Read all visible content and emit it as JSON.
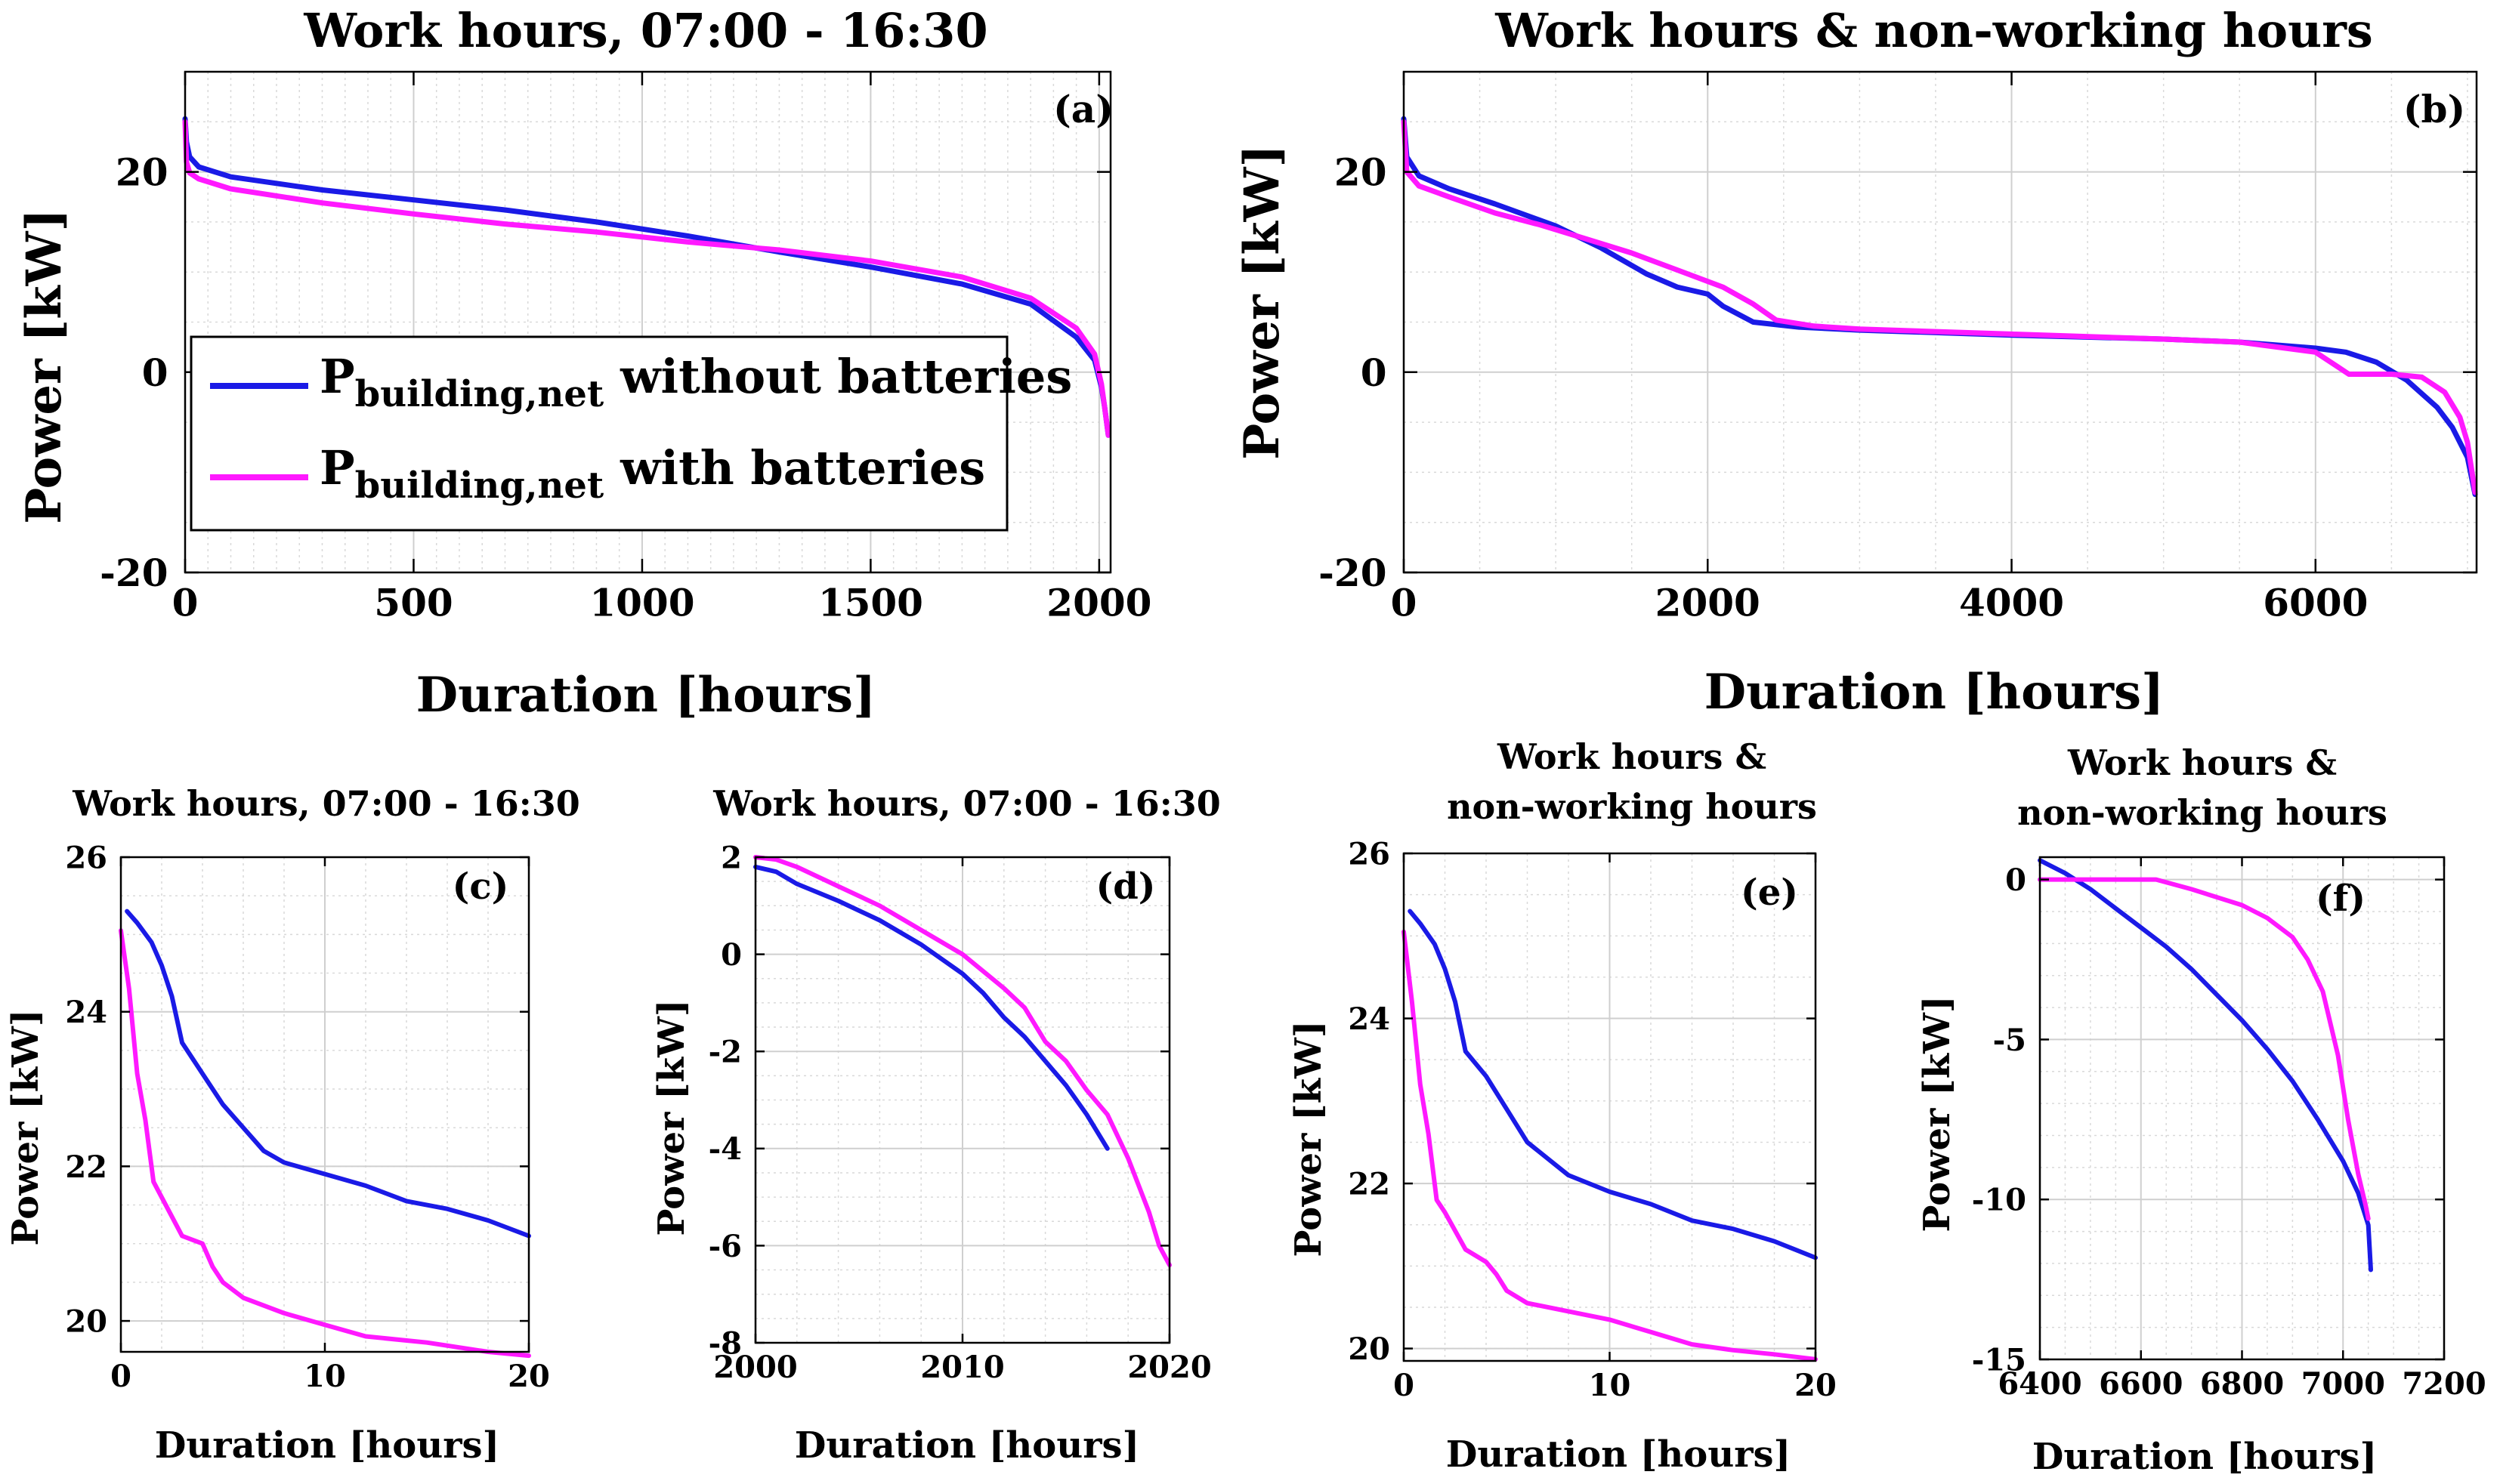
{
  "figure": {
    "background": "#ffffff"
  },
  "colors": {
    "without_batteries": "#1a1ae6",
    "with_batteries": "#ff19ff",
    "grid": "#d9d9d9",
    "axis": "#000000"
  },
  "chart_data": [
    {
      "id": "a",
      "type": "line",
      "title": "Work hours, 07:00 - 16:30",
      "panel_label": "(a)",
      "xlabel": "Duration [hours]",
      "ylabel": "Power [kW]",
      "xlim": [
        0,
        2025
      ],
      "ylim": [
        -20,
        30
      ],
      "xticks": [
        0,
        500,
        1000,
        1500,
        2000
      ],
      "yticks": [
        -20,
        0,
        20
      ],
      "xtick_labels": [
        "0",
        "500",
        "1000",
        "1500",
        "2000"
      ],
      "ytick_labels": [
        "-20",
        "0",
        "20"
      ],
      "minor_x": 50,
      "minor_y": 5,
      "grid": true,
      "legend": {
        "position": "left",
        "entries": [
          {
            "symbol": "P",
            "subscript": "building,net",
            "text": "without batteries"
          },
          {
            "symbol": "P",
            "subscript": "building,net",
            "text": "with batteries"
          }
        ]
      },
      "series": [
        {
          "name": "without batteries",
          "color": "#1a1ae6",
          "x": [
            0,
            3,
            10,
            30,
            100,
            300,
            500,
            700,
            900,
            1100,
            1300,
            1500,
            1700,
            1850,
            1950,
            1990,
            2005,
            2012,
            2020
          ],
          "y": [
            25.3,
            23,
            21.5,
            20.5,
            19.5,
            18.2,
            17.2,
            16.2,
            15,
            13.6,
            12,
            10.5,
            8.8,
            6.8,
            3.5,
            1.2,
            -1.5,
            -3.5,
            -6.3
          ]
        },
        {
          "name": "with batteries",
          "color": "#ff19ff",
          "x": [
            0,
            3,
            10,
            30,
            100,
            300,
            500,
            700,
            900,
            1100,
            1300,
            1500,
            1700,
            1850,
            1950,
            1990,
            2005,
            2012,
            2020
          ],
          "y": [
            25,
            21,
            19.9,
            19.3,
            18.3,
            16.9,
            15.8,
            14.8,
            14,
            13,
            12.2,
            11.1,
            9.5,
            7.4,
            4.4,
            1.8,
            -1.2,
            -3.5,
            -6.3
          ]
        }
      ]
    },
    {
      "id": "b",
      "type": "line",
      "title": "Work hours & non-working hours",
      "panel_label": "(b)",
      "xlabel": "Duration [hours]",
      "ylabel": "Power [kW]",
      "xlim": [
        0,
        7060
      ],
      "ylim": [
        -20,
        30
      ],
      "xticks": [
        0,
        2000,
        4000,
        6000
      ],
      "yticks": [
        -20,
        0,
        20
      ],
      "xtick_labels": [
        "0",
        "2000",
        "4000",
        "6000"
      ],
      "ytick_labels": [
        "-20",
        "0",
        "20"
      ],
      "minor_x": 500,
      "minor_y": 5,
      "grid": true,
      "series": [
        {
          "name": "without batteries",
          "color": "#1a1ae6",
          "x": [
            0,
            20,
            100,
            300,
            600,
            1000,
            1300,
            1600,
            1800,
            2000,
            2100,
            2300,
            2600,
            3000,
            4000,
            5000,
            5500,
            6000,
            6200,
            6400,
            6600,
            6800,
            6900,
            7000,
            7050
          ],
          "y": [
            25.3,
            21.5,
            19.6,
            18.3,
            16.8,
            14.6,
            12.4,
            9.8,
            8.5,
            7.8,
            6.6,
            5,
            4.5,
            4.2,
            3.7,
            3.3,
            3,
            2.4,
            2,
            1,
            -0.8,
            -3.5,
            -5.5,
            -8.5,
            -12.2
          ]
        },
        {
          "name": "with batteries",
          "color": "#ff19ff",
          "x": [
            0,
            20,
            100,
            300,
            600,
            900,
            1200,
            1500,
            1800,
            2100,
            2300,
            2450,
            2700,
            3000,
            4000,
            5000,
            5500,
            6000,
            6150,
            6220,
            6300,
            6500,
            6700,
            6850,
            6950,
            7000,
            7050
          ],
          "y": [
            25,
            20,
            18.6,
            17.5,
            15.9,
            14.7,
            13.3,
            11.9,
            10.2,
            8.5,
            6.8,
            5.2,
            4.6,
            4.3,
            3.8,
            3.3,
            3,
            2,
            0.5,
            -0.2,
            -0.2,
            -0.2,
            -0.5,
            -2,
            -4.5,
            -7,
            -12
          ]
        }
      ]
    },
    {
      "id": "c",
      "type": "line",
      "title": "Work hours, 07:00 - 16:30",
      "panel_label": "(c)",
      "xlabel": "Duration [hours]",
      "ylabel": "Power [kW]",
      "xlim": [
        0,
        20
      ],
      "ylim": [
        19.6,
        26
      ],
      "xticks": [
        0,
        10,
        20
      ],
      "yticks": [
        20,
        22,
        24,
        26
      ],
      "xtick_labels": [
        "0",
        "10",
        "20"
      ],
      "ytick_labels": [
        "20",
        "22",
        "24",
        "26"
      ],
      "minor_x": 2,
      "minor_y": 0.5,
      "grid": true,
      "series": [
        {
          "name": "without batteries",
          "color": "#1a1ae6",
          "x": [
            0.3,
            0.8,
            1.5,
            2,
            2.5,
            3,
            4,
            5,
            6,
            7,
            8,
            10,
            12,
            14,
            16,
            18,
            20
          ],
          "y": [
            25.3,
            25.15,
            24.9,
            24.6,
            24.2,
            23.6,
            23.2,
            22.8,
            22.5,
            22.2,
            22.05,
            21.9,
            21.75,
            21.55,
            21.45,
            21.3,
            21.1
          ]
        },
        {
          "name": "with batteries",
          "color": "#ff19ff",
          "x": [
            0,
            0.4,
            0.8,
            1.2,
            1.6,
            2,
            3,
            4,
            4.5,
            5,
            6,
            8,
            10,
            12,
            15,
            18,
            20
          ],
          "y": [
            25.05,
            24.3,
            23.2,
            22.6,
            21.8,
            21.6,
            21.1,
            21,
            20.7,
            20.5,
            20.3,
            20.1,
            19.95,
            19.8,
            19.72,
            19.6,
            19.55
          ]
        }
      ]
    },
    {
      "id": "d",
      "type": "line",
      "title": "Work hours, 07:00 - 16:30",
      "panel_label": "(d)",
      "xlabel": "Duration [hours]",
      "ylabel": "Power [kW]",
      "xlim": [
        2000,
        2020
      ],
      "ylim": [
        -8,
        2
      ],
      "xticks": [
        2000,
        2010,
        2020
      ],
      "yticks": [
        -8,
        -6,
        -4,
        -2,
        0,
        2
      ],
      "xtick_labels": [
        "2000",
        "2010",
        "2020"
      ],
      "ytick_labels": [
        "-8",
        "-6",
        "-4",
        "-2",
        "0",
        "2"
      ],
      "minor_x": 2,
      "minor_y": 0.5,
      "grid": true,
      "series": [
        {
          "name": "without batteries",
          "color": "#1a1ae6",
          "x": [
            2000,
            2001,
            2002,
            2004,
            2006,
            2008,
            2010,
            2011,
            2012,
            2013,
            2014,
            2015,
            2016,
            2017
          ],
          "y": [
            1.8,
            1.7,
            1.45,
            1.1,
            0.7,
            0.2,
            -0.4,
            -0.8,
            -1.3,
            -1.7,
            -2.2,
            -2.7,
            -3.3,
            -4
          ]
        },
        {
          "name": "with batteries",
          "color": "#ff19ff",
          "x": [
            2000,
            2001,
            2002,
            2004,
            2006,
            2008,
            2010,
            2012,
            2013,
            2014,
            2015,
            2016,
            2017,
            2018,
            2019,
            2019.5,
            2020
          ],
          "y": [
            2,
            1.95,
            1.8,
            1.4,
            1,
            0.5,
            0,
            -0.7,
            -1.1,
            -1.8,
            -2.2,
            -2.8,
            -3.3,
            -4.2,
            -5.3,
            -6,
            -6.4
          ]
        }
      ]
    },
    {
      "id": "e",
      "type": "line",
      "title": "Work hours &",
      "title_line2": "non-working hours",
      "panel_label": "(e)",
      "xlabel": "Duration [hours]",
      "ylabel": "Power [kW]",
      "xlim": [
        0,
        20
      ],
      "ylim": [
        19.85,
        26
      ],
      "xticks": [
        0,
        10,
        20
      ],
      "yticks": [
        20,
        22,
        24,
        26
      ],
      "xtick_labels": [
        "0",
        "10",
        "20"
      ],
      "ytick_labels": [
        "20",
        "22",
        "24",
        "26"
      ],
      "minor_x": 2,
      "minor_y": 0.5,
      "grid": true,
      "series": [
        {
          "name": "without batteries",
          "color": "#1a1ae6",
          "x": [
            0.3,
            0.8,
            1.5,
            2,
            2.5,
            3,
            4,
            5,
            6,
            7,
            8,
            10,
            12,
            14,
            16,
            18,
            20
          ],
          "y": [
            25.3,
            25.15,
            24.9,
            24.6,
            24.2,
            23.6,
            23.3,
            22.9,
            22.5,
            22.3,
            22.1,
            21.9,
            21.75,
            21.55,
            21.45,
            21.3,
            21.1
          ]
        },
        {
          "name": "with batteries",
          "color": "#ff19ff",
          "x": [
            0,
            0.4,
            0.8,
            1.2,
            1.6,
            2,
            3,
            4,
            4.5,
            5,
            6,
            8,
            10,
            12,
            14,
            16,
            18,
            20
          ],
          "y": [
            25.05,
            24.2,
            23.2,
            22.6,
            21.8,
            21.65,
            21.2,
            21.05,
            20.9,
            20.7,
            20.55,
            20.45,
            20.35,
            20.2,
            20.05,
            19.98,
            19.93,
            19.87
          ]
        }
      ]
    },
    {
      "id": "f",
      "type": "line",
      "title": "Work hours &",
      "title_line2": "non-working hours",
      "panel_label": "(f)",
      "xlabel": "Duration [hours]",
      "ylabel": "Power [kW]",
      "xlim": [
        6400,
        7200
      ],
      "ylim": [
        -15,
        0.7
      ],
      "xticks": [
        6400,
        6600,
        6800,
        7000,
        7200
      ],
      "yticks": [
        -15,
        -10,
        -5,
        0
      ],
      "xtick_labels": [
        "6400",
        "6600",
        "6800",
        "7000",
        "7200"
      ],
      "ytick_labels": [
        "-15",
        "-10",
        "-5",
        "0"
      ],
      "minor_x": 50,
      "minor_y": 1,
      "grid": true,
      "series": [
        {
          "name": "without batteries",
          "color": "#1a1ae6",
          "x": [
            6400,
            6450,
            6500,
            6550,
            6600,
            6650,
            6700,
            6750,
            6800,
            6850,
            6900,
            6950,
            7000,
            7030,
            7050,
            7055
          ],
          "y": [
            0.6,
            0.2,
            -0.3,
            -0.9,
            -1.5,
            -2.1,
            -2.8,
            -3.6,
            -4.4,
            -5.3,
            -6.3,
            -7.5,
            -8.8,
            -9.8,
            -10.8,
            -12.2
          ]
        },
        {
          "name": "with batteries",
          "color": "#ff19ff",
          "x": [
            6400,
            6500,
            6630,
            6700,
            6800,
            6850,
            6900,
            6930,
            6960,
            6990,
            7010,
            7030,
            7045,
            7050
          ],
          "y": [
            0,
            0,
            0,
            -0.3,
            -0.8,
            -1.2,
            -1.8,
            -2.5,
            -3.5,
            -5.5,
            -7.5,
            -9.2,
            -10.2,
            -10.6
          ]
        }
      ]
    }
  ]
}
